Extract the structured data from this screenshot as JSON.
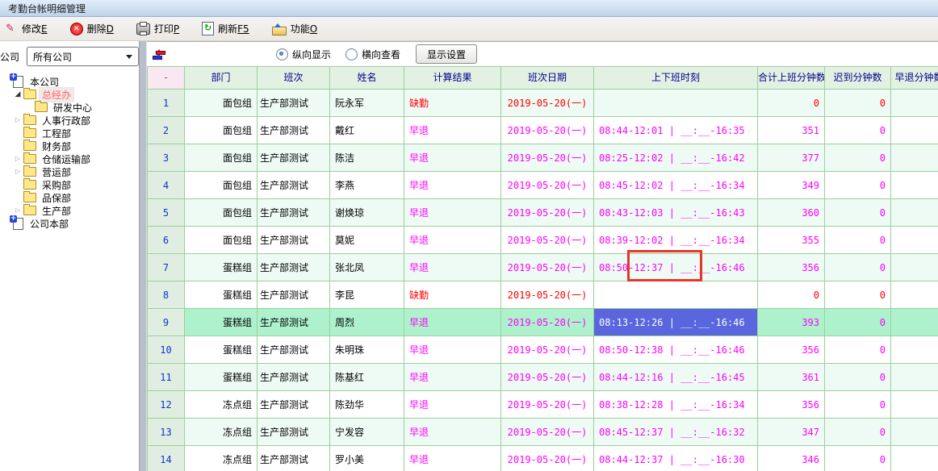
{
  "window": {
    "title": "考勤台帐明细管理"
  },
  "toolbar": {
    "buttons": [
      {
        "name": "edit",
        "label": "修改",
        "key": "E"
      },
      {
        "name": "delete",
        "label": "删除",
        "key": "D"
      },
      {
        "name": "print",
        "label": "打印",
        "key": "P"
      },
      {
        "name": "refresh",
        "label": "刷新",
        "key": "F5"
      },
      {
        "name": "function",
        "label": "功能",
        "key": "O"
      }
    ]
  },
  "sidebar": {
    "company_label": "公司",
    "company_select_value": "所有公司",
    "tree": [
      {
        "label": "本公司",
        "level": 0,
        "icon": "company",
        "expander": "none",
        "selected": false
      },
      {
        "label": "总经办",
        "level": 1,
        "icon": "folder",
        "expander": "expanded",
        "selected": true
      },
      {
        "label": "研发中心",
        "level": 2,
        "icon": "folder",
        "expander": "none",
        "selected": false
      },
      {
        "label": "人事行政部",
        "level": 1,
        "icon": "folder",
        "expander": "collapsed",
        "selected": false
      },
      {
        "label": "工程部",
        "level": 1,
        "icon": "folder",
        "expander": "none",
        "selected": false
      },
      {
        "label": "财务部",
        "level": 1,
        "icon": "folder",
        "expander": "none",
        "selected": false
      },
      {
        "label": "仓储运输部",
        "level": 1,
        "icon": "folder",
        "expander": "collapsed",
        "selected": false
      },
      {
        "label": "营运部",
        "level": 1,
        "icon": "folder",
        "expander": "collapsed",
        "selected": false
      },
      {
        "label": "采购部",
        "level": 1,
        "icon": "folder",
        "expander": "none",
        "selected": false
      },
      {
        "label": "品保部",
        "level": 1,
        "icon": "folder",
        "expander": "none",
        "selected": false
      },
      {
        "label": "生产部",
        "level": 1,
        "icon": "folder",
        "expander": "collapsed",
        "selected": false
      },
      {
        "label": "公司本部",
        "level": 0,
        "icon": "company",
        "expander": "none",
        "selected": false
      }
    ]
  },
  "controls": {
    "radio_vertical_label": "纵向显示",
    "radio_horizontal_label": "横向查看",
    "selected_radio": "vertical",
    "settings_button_label": "显示设置"
  },
  "table": {
    "headers": [
      "-",
      "部门",
      "班次",
      "姓名",
      "计算结果",
      "班次日期",
      "上下班时刻",
      "合计上班分钟数",
      "迟到分钟数",
      "早退分钟数"
    ],
    "rows": [
      {
        "num": "1",
        "dept": "面包组",
        "shift": "生产部测试",
        "name": "阮永军",
        "result": "缺勤",
        "status": "absent",
        "date": "2019-05-20(一)",
        "times": "",
        "total": "0",
        "late": "0",
        "selected": false
      },
      {
        "num": "2",
        "dept": "面包组",
        "shift": "生产部测试",
        "name": "戴红",
        "result": "早退",
        "status": "early",
        "date": "2019-05-20(一)",
        "times": "08:44-12:01 | __:__-16:35",
        "total": "351",
        "late": "0",
        "selected": false
      },
      {
        "num": "3",
        "dept": "面包组",
        "shift": "生产部测试",
        "name": "陈洁",
        "result": "早退",
        "status": "early",
        "date": "2019-05-20(一)",
        "times": "08:25-12:02 | __:__-16:42",
        "total": "377",
        "late": "0",
        "selected": false
      },
      {
        "num": "4",
        "dept": "面包组",
        "shift": "生产部测试",
        "name": "李燕",
        "result": "早退",
        "status": "early",
        "date": "2019-05-20(一)",
        "times": "08:45-12:02 | __:__-16:34",
        "total": "349",
        "late": "0",
        "selected": false
      },
      {
        "num": "5",
        "dept": "面包组",
        "shift": "生产部测试",
        "name": "谢焕琼",
        "result": "早退",
        "status": "early",
        "date": "2019-05-20(一)",
        "times": "08:43-12:03 | __:__-16:43",
        "total": "360",
        "late": "0",
        "selected": false
      },
      {
        "num": "6",
        "dept": "面包组",
        "shift": "生产部测试",
        "name": "莫妮",
        "result": "早退",
        "status": "early",
        "date": "2019-05-20(一)",
        "times": "08:39-12:02 | __:__-16:34",
        "total": "355",
        "late": "0",
        "selected": false
      },
      {
        "num": "7",
        "dept": "蛋糕组",
        "shift": "生产部测试",
        "name": "张北凤",
        "result": "早退",
        "status": "early",
        "date": "2019-05-20(一)",
        "times": "08:50-12:37 | __:__-16:46",
        "total": "356",
        "late": "0",
        "selected": false
      },
      {
        "num": "8",
        "dept": "蛋糕组",
        "shift": "生产部测试",
        "name": "李昆",
        "result": "缺勤",
        "status": "absent",
        "date": "2019-05-20(一)",
        "times": "",
        "total": "0",
        "late": "0",
        "selected": false
      },
      {
        "num": "9",
        "dept": "蛋糕组",
        "shift": "生产部测试",
        "name": "周烈",
        "result": "早退",
        "status": "early",
        "date": "2019-05-20(一)",
        "times": "08:13-12:26 | __:__-16:46",
        "total": "393",
        "late": "0",
        "selected": true
      },
      {
        "num": "10",
        "dept": "蛋糕组",
        "shift": "生产部测试",
        "name": "朱明珠",
        "result": "早退",
        "status": "early",
        "date": "2019-05-20(一)",
        "times": "08:50-12:38 | __:__-16:46",
        "total": "356",
        "late": "0",
        "selected": false
      },
      {
        "num": "11",
        "dept": "蛋糕组",
        "shift": "生产部测试",
        "name": "陈基红",
        "result": "早退",
        "status": "early",
        "date": "2019-05-20(一)",
        "times": "08:44-12:16 | __:__-16:45",
        "total": "361",
        "late": "0",
        "selected": false
      },
      {
        "num": "12",
        "dept": "冻点组",
        "shift": "生产部测试",
        "name": "陈劲华",
        "result": "早退",
        "status": "early",
        "date": "2019-05-20(一)",
        "times": "08:38-12:28 | __:__-16:34",
        "total": "356",
        "late": "0",
        "selected": false
      },
      {
        "num": "13",
        "dept": "冻点组",
        "shift": "生产部测试",
        "name": "宁发容",
        "result": "早退",
        "status": "early",
        "date": "2019-05-20(一)",
        "times": "08:45-12:37 | __:__-16:32",
        "total": "347",
        "late": "0",
        "selected": false
      },
      {
        "num": "14",
        "dept": "冻点组",
        "shift": "生产部测试",
        "name": "罗小美",
        "result": "早退",
        "status": "early",
        "date": "2019-05-20(一)",
        "times": "08:44-12:37 | __:__-16:30",
        "total": "346",
        "late": "0",
        "selected": false
      }
    ]
  },
  "annotation": {
    "type": "red-box-highlight",
    "over": "row 7 上下班时刻 12:37 | __:__-16:46"
  },
  "colors": {
    "grid_border": "#9ccf9c",
    "header_bg": "#e3f1e3",
    "header_text": "#00008b",
    "first_header_bg": "#f9e7f1",
    "rownum_bg": "#e0eee2",
    "rownum_text": "#1133cc",
    "odd_row_bg": "#eefaf4",
    "selected_row_bg": "#adf2cc",
    "selected_cell_bg": "#5a66dd",
    "status_red": "#ff0000",
    "status_magenta": "#ff00ff",
    "annotation_red": "#e8352b",
    "titlebar_top": "#e3eefa",
    "titlebar_bottom": "#bdd3ea"
  }
}
